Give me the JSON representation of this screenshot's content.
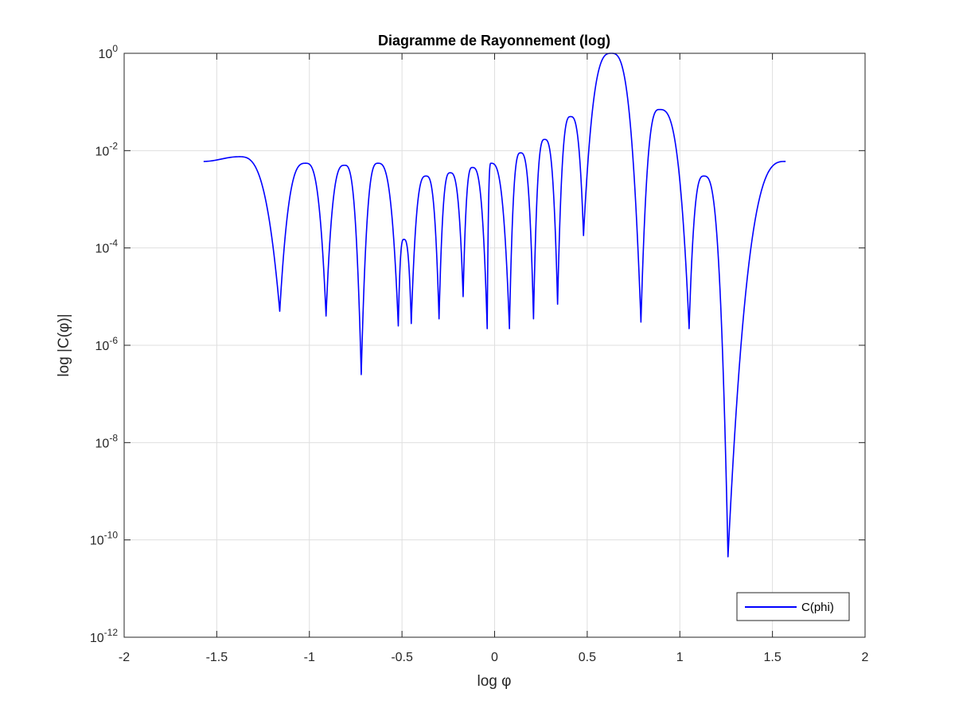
{
  "chart_data": {
    "type": "line",
    "title": "Diagramme de Rayonnement (log)",
    "xlabel": "log φ",
    "ylabel": "log |C(φ)|",
    "xlim": [
      -2,
      2
    ],
    "ylim_exponent": [
      -12,
      0
    ],
    "y_scale": "log",
    "grid": true,
    "legend_position": "bottom-right",
    "x_ticks": [
      "-2",
      "-1.5",
      "-1",
      "-0.5",
      "0",
      "0.5",
      "1",
      "1.5",
      "2"
    ],
    "y_ticks": [
      {
        "base": "10",
        "exp": "-12",
        "value_exp": -12
      },
      {
        "base": "10",
        "exp": "-10",
        "value_exp": -10
      },
      {
        "base": "10",
        "exp": "-8",
        "value_exp": -8
      },
      {
        "base": "10",
        "exp": "-6",
        "value_exp": -6
      },
      {
        "base": "10",
        "exp": "-4",
        "value_exp": -4
      },
      {
        "base": "10",
        "exp": "-2",
        "value_exp": -2
      },
      {
        "base": "10",
        "exp": "0",
        "value_exp": 0
      }
    ],
    "series": [
      {
        "name": "C(phi)",
        "color": "#0000ff",
        "peaks": [
          [
            -1.571,
            0.006
          ],
          [
            -1.38,
            0.0075
          ],
          [
            -1.02,
            0.0055
          ],
          [
            -0.81,
            0.005
          ],
          [
            -0.63,
            0.0055
          ],
          [
            -0.49,
            0.00015
          ],
          [
            -0.37,
            0.003
          ],
          [
            -0.24,
            0.0035
          ],
          [
            -0.12,
            0.0045
          ],
          [
            -0.02,
            0.0055
          ],
          [
            0.14,
            0.009
          ],
          [
            0.27,
            0.017
          ],
          [
            0.41,
            0.05
          ],
          [
            0.63,
            1.0
          ],
          [
            0.89,
            0.07
          ],
          [
            1.13,
            0.003
          ],
          [
            1.571,
            0.006
          ]
        ],
        "nulls": [
          [
            -1.16,
            5e-06
          ],
          [
            -0.91,
            4e-06
          ],
          [
            -0.72,
            2.5e-07
          ],
          [
            -0.52,
            2.5e-06
          ],
          [
            -0.45,
            2.8e-06
          ],
          [
            -0.3,
            3.5e-06
          ],
          [
            -0.17,
            1e-05
          ],
          [
            -0.04,
            2.2e-06
          ],
          [
            0.08,
            2.2e-06
          ],
          [
            0.21,
            3.5e-06
          ],
          [
            0.34,
            7e-06
          ],
          [
            0.48,
            0.00018
          ],
          [
            0.79,
            3e-06
          ],
          [
            1.05,
            2.2e-06
          ],
          [
            1.26,
            4.5e-11
          ]
        ]
      }
    ]
  }
}
